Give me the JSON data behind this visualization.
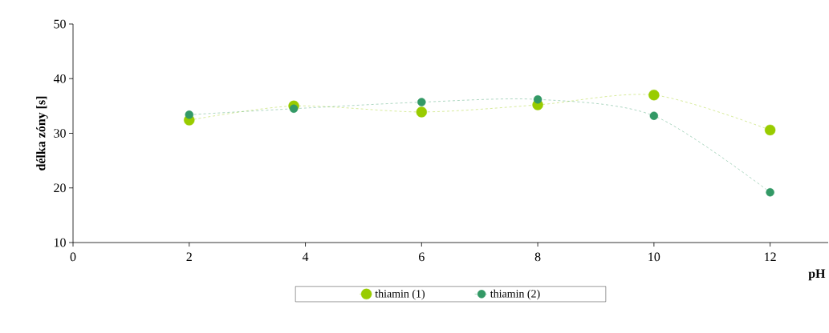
{
  "chart_data": {
    "type": "line",
    "xlabel": "pH",
    "ylabel": "délka zóny [s]",
    "xlim": [
      0,
      13
    ],
    "xticks": [
      0,
      2,
      4,
      6,
      8,
      10,
      12
    ],
    "ylim": [
      10,
      50
    ],
    "yticks": [
      10,
      20,
      30,
      40,
      50
    ],
    "series": [
      {
        "name": "thiamin (1)",
        "color": "#99cc00",
        "x": [
          2,
          3.8,
          6,
          8,
          10,
          12
        ],
        "values": [
          32.4,
          35.0,
          33.9,
          35.2,
          37.0,
          30.6
        ]
      },
      {
        "name": "thiamin (2)",
        "color": "#339966",
        "x": [
          2,
          3.8,
          6,
          8,
          10,
          12
        ],
        "values": [
          33.4,
          34.5,
          35.7,
          36.2,
          33.2,
          19.2
        ]
      }
    ],
    "marker": "circle",
    "line_style": "dashed",
    "legend": "bottom",
    "grid": false
  }
}
